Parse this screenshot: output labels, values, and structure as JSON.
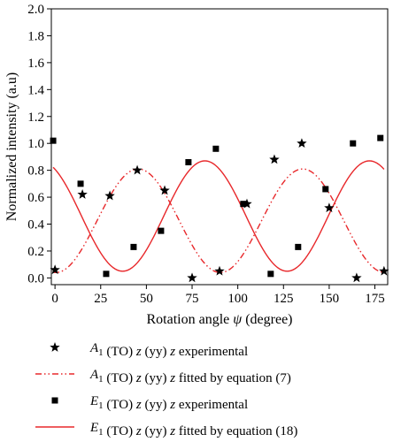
{
  "chart_data": {
    "type": "scatter",
    "xlabel_main": "Rotation angle ",
    "xlabel_symbol": "ψ",
    "xlabel_unit": " (degree)",
    "ylabel": "Normalized intensity (a.u)",
    "xlim": [
      -2,
      182
    ],
    "ylim": [
      -0.05,
      2.0
    ],
    "xticks": [
      0,
      25,
      50,
      75,
      100,
      125,
      150,
      175
    ],
    "yticks": [
      0.0,
      0.2,
      0.4,
      0.6,
      0.8,
      1.0,
      1.2,
      1.4,
      1.6,
      1.8,
      2.0
    ],
    "grid": false,
    "legend_placement": "below",
    "series": [
      {
        "name": "A1 experimental",
        "kind": "scatter",
        "marker": "star",
        "color": "#000000",
        "points": [
          [
            0,
            0.06
          ],
          [
            15,
            0.62
          ],
          [
            30,
            0.61
          ],
          [
            45,
            0.8
          ],
          [
            60,
            0.65
          ],
          [
            75,
            0.0
          ],
          [
            90,
            0.05
          ],
          [
            105,
            0.55
          ],
          [
            120,
            0.88
          ],
          [
            135,
            1.0
          ],
          [
            150,
            0.52
          ],
          [
            165,
            0.0
          ],
          [
            180,
            0.05
          ]
        ]
      },
      {
        "name": "A1 fitted by equation (7)",
        "kind": "line",
        "dash": "dash-dot-dot",
        "color": "#e8282b",
        "formula": "0.77*sin^2(2*(x - 0.5)) + 0.04"
      },
      {
        "name": "E1 experimental",
        "kind": "scatter",
        "marker": "square",
        "color": "#000000",
        "points": [
          [
            -1,
            1.02
          ],
          [
            14,
            0.7
          ],
          [
            28,
            0.03
          ],
          [
            43,
            0.23
          ],
          [
            58,
            0.35
          ],
          [
            73,
            0.86
          ],
          [
            88,
            0.96
          ],
          [
            103,
            0.55
          ],
          [
            118,
            0.03
          ],
          [
            133,
            0.23
          ],
          [
            148,
            0.66
          ],
          [
            163,
            1.0
          ],
          [
            178,
            1.04
          ]
        ]
      },
      {
        "name": "E1 fitted by equation (18)",
        "kind": "line",
        "dash": "solid",
        "color": "#e8282b",
        "formula": "0.05 + 0.82*cos^2(2*(x - 82))"
      }
    ],
    "legend": [
      {
        "marker": "star",
        "prefix": "A",
        "sub": "1",
        "suffix": " (TO) ",
        "z1": "z",
        "mid": " (yy) ",
        "z2": "z",
        "tail": " experimental"
      },
      {
        "marker": "dashdot",
        "prefix": "A",
        "sub": "1",
        "suffix": " (TO) ",
        "z1": "z",
        "mid": " (yy) ",
        "z2": "z",
        "tail": " fitted by equation (7)"
      },
      {
        "marker": "square",
        "prefix": "E",
        "sub": "1",
        "suffix": " (TO) ",
        "z1": "z",
        "mid": " (yy) ",
        "z2": "z",
        "tail": " experimental"
      },
      {
        "marker": "solid",
        "prefix": "E",
        "sub": "1",
        "suffix": " (TO) ",
        "z1": "z",
        "mid": " (yy) ",
        "z2": "z",
        "tail": " fitted by equation (18)"
      }
    ]
  }
}
